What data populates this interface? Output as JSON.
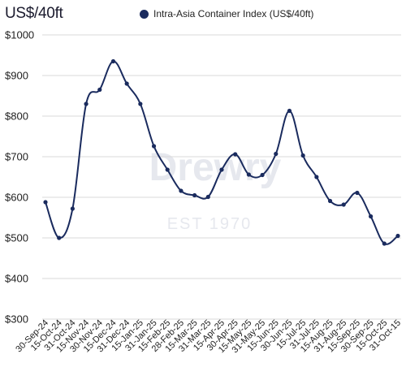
{
  "unit_label": "US$/40ft",
  "watermark": {
    "brand": "Drewry",
    "tagline": "EST 1970"
  },
  "colors": {
    "series": "#1a2b5e",
    "grid": "#d9d9d9",
    "text": "#222222",
    "watermark": "#e6e8ee"
  },
  "chart_data": {
    "type": "line",
    "title": "",
    "xlabel": "",
    "ylabel": "US$/40ft",
    "ylim": [
      300,
      1000
    ],
    "yticks": [
      300,
      400,
      500,
      600,
      700,
      800,
      900,
      1000
    ],
    "ytick_labels": [
      "$300",
      "$400",
      "$500",
      "$600",
      "$700",
      "$800",
      "$900",
      "$1000"
    ],
    "grid": "horizontal",
    "legend": "top",
    "categories": [
      "30-Sep-24",
      "15-Oct-24",
      "31-Oct-24",
      "15-Nov-24",
      "30-Nov-24",
      "15-Dec-24",
      "31-Dec-24",
      "15-Jan-25",
      "31-Jan-25",
      "15-Feb-25",
      "28-Feb-25",
      "15-Mar-25",
      "31-Mar-25",
      "15-Apr-25",
      "30-Apr-25",
      "15-May-25",
      "31-May-25",
      "15-Jun-25",
      "30-Jun-25",
      "15-Jul-25",
      "31-Jul-25",
      "15-Aug-25",
      "31-Aug-25",
      "15-Sep-25",
      "30-Sep-25",
      "15-Oct-25",
      "31-Oct-15"
    ],
    "series": [
      {
        "name": "Intra-Asia Container Index (US$/40ft)",
        "values": [
          588,
          500,
          572,
          830,
          865,
          935,
          880,
          830,
          726,
          668,
          616,
          605,
          601,
          668,
          706,
          656,
          655,
          707,
          813,
          703,
          650,
          591,
          582,
          611,
          553,
          486,
          505
        ]
      }
    ]
  }
}
